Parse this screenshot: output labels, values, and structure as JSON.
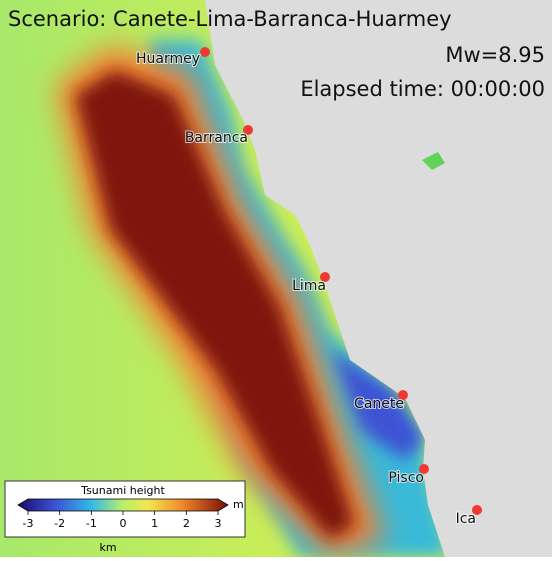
{
  "title": "Scenario: Canete-Lima-Barranca-Huarmey",
  "magnitude": "Mw=8.95",
  "elapsed_time": "Elapsed time: 00:00:00",
  "cities": [
    {
      "label": "Huarmey"
    },
    {
      "label": "Barranca"
    },
    {
      "label": "Lima"
    },
    {
      "label": "Canete"
    },
    {
      "label": "Pisco"
    },
    {
      "label": "Ica"
    }
  ],
  "colorbar": {
    "title": "Tsunami height",
    "unit": "m",
    "lim": [
      -3,
      3
    ],
    "ticks": [
      -3,
      -2,
      -1,
      0,
      1,
      2,
      3
    ]
  },
  "scale_unit": "km"
}
